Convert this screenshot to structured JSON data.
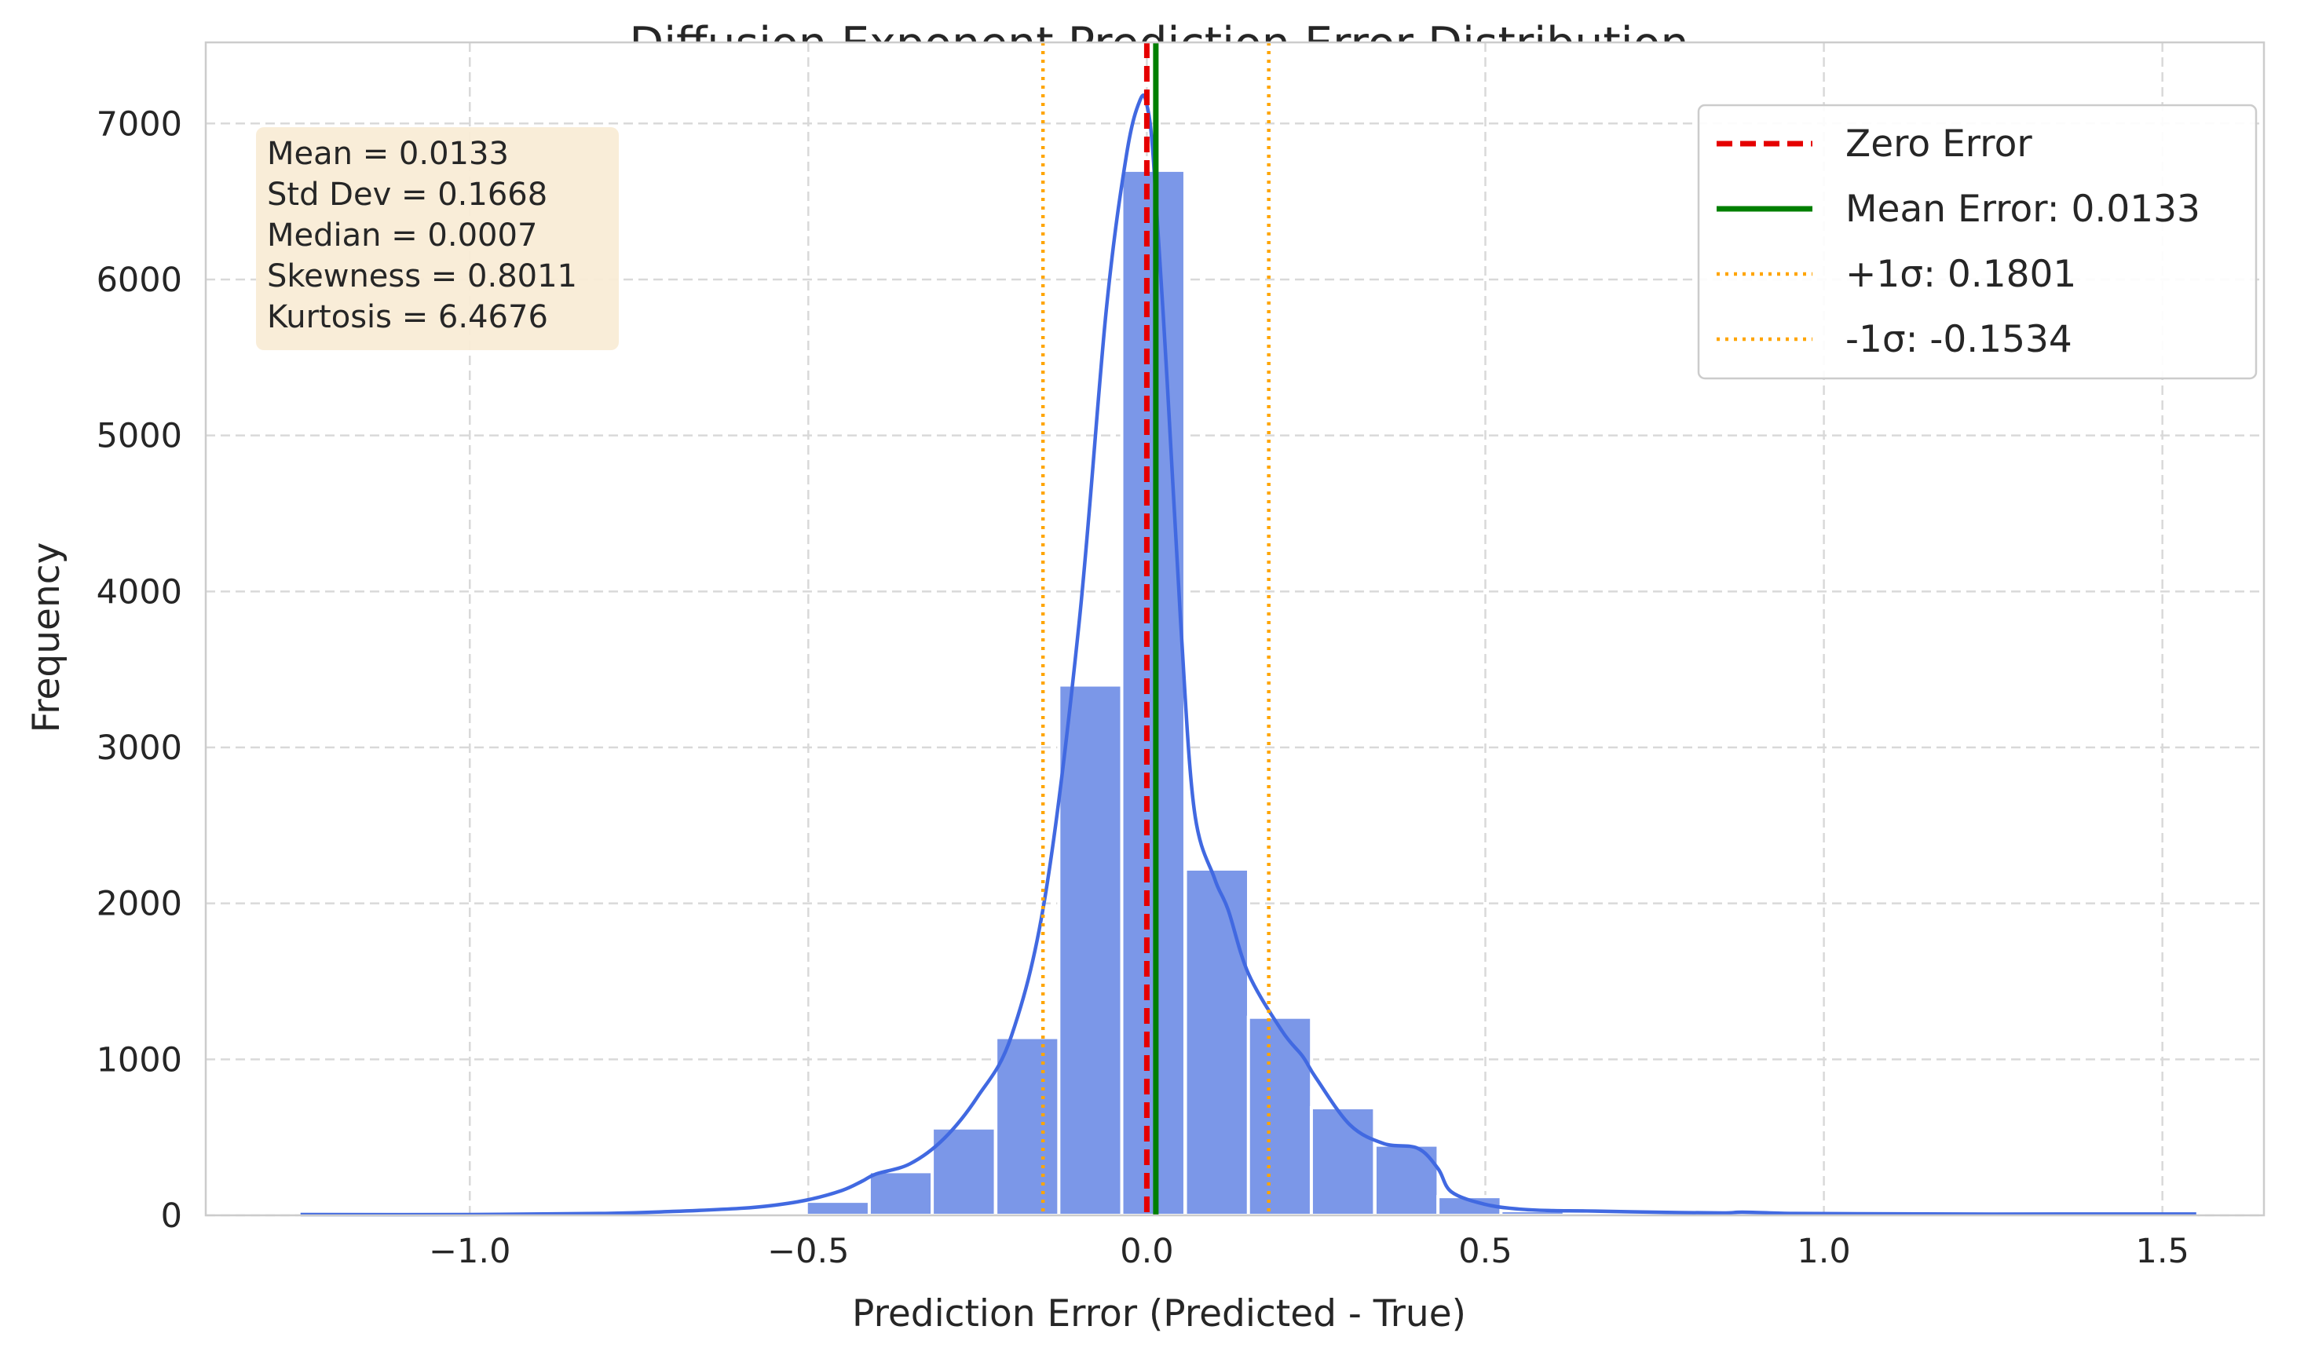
{
  "chart_data": {
    "type": "bar",
    "title": "Diffusion Exponent Prediction Error Distribution",
    "xlabel": "Prediction Error (Predicted - True)",
    "ylabel": "Frequency",
    "xlim": [
      -1.39,
      1.65
    ],
    "ylim": [
      0,
      7520
    ],
    "grid": true,
    "x_ticks": [
      -1.0,
      -0.5,
      0.0,
      0.5,
      1.0,
      1.5
    ],
    "x_tick_labels": [
      "−1.0",
      "−0.5",
      "0.0",
      "0.5",
      "1.0",
      "1.5"
    ],
    "y_ticks": [
      0,
      1000,
      2000,
      3000,
      4000,
      5000,
      6000,
      7000
    ],
    "y_tick_labels": [
      "0",
      "1000",
      "2000",
      "3000",
      "4000",
      "5000",
      "6000",
      "7000"
    ],
    "bin_width": 0.0933,
    "histogram": {
      "bin_starts": [
        -1.25,
        -1.157,
        -1.063,
        -0.97,
        -0.877,
        -0.783,
        -0.69,
        -0.597,
        -0.503,
        -0.41,
        -0.317,
        -0.223,
        -0.13,
        -0.037,
        0.057,
        0.15,
        0.243,
        0.337,
        0.43,
        0.523,
        0.617,
        0.71,
        0.803,
        0.897,
        0.99,
        1.083,
        1.177,
        1.27,
        1.363,
        1.457
      ],
      "values": [
        2,
        1,
        2,
        3,
        3,
        5,
        8,
        18,
        90,
        280,
        560,
        1140,
        3400,
        6700,
        2220,
        1270,
        690,
        450,
        120,
        30,
        12,
        8,
        6,
        6,
        4,
        3,
        2,
        2,
        2,
        2
      ]
    },
    "kde": {
      "x": [
        -1.25,
        -1.0,
        -0.8,
        -0.7,
        -0.6,
        -0.55,
        -0.5,
        -0.45,
        -0.42,
        -0.4,
        -0.35,
        -0.3,
        -0.25,
        -0.2,
        -0.15,
        -0.1,
        -0.06,
        -0.03,
        -0.01,
        0.0,
        0.01,
        0.03,
        0.05,
        0.07,
        0.1,
        0.12,
        0.15,
        0.2,
        0.23,
        0.25,
        0.3,
        0.35,
        0.4,
        0.43,
        0.45,
        0.5,
        0.55,
        0.6,
        0.65,
        0.75,
        0.85,
        0.88,
        0.95,
        1.05,
        1.2,
        1.35,
        1.55
      ],
      "y": [
        5,
        5,
        12,
        25,
        45,
        65,
        100,
        160,
        220,
        265,
        330,
        490,
        760,
        1150,
        2050,
        3800,
        5800,
        6800,
        7150,
        7120,
        6750,
        5350,
        3800,
        2600,
        2160,
        1960,
        1550,
        1180,
        1020,
        880,
        580,
        460,
        430,
        300,
        150,
        70,
        40,
        30,
        28,
        20,
        15,
        20,
        12,
        10,
        8,
        8,
        8
      ]
    },
    "vlines": [
      {
        "name": "Zero Error",
        "x": 0.0,
        "color": "#e50000",
        "style": "dashed"
      },
      {
        "name": "Mean Error: 0.0133",
        "x": 0.0133,
        "color": "#007f00",
        "style": "solid"
      },
      {
        "name": "+1σ: 0.1801",
        "x": 0.1801,
        "color": "#ffa500",
        "style": "dotted"
      },
      {
        "name": "-1σ: -0.1534",
        "x": -0.1534,
        "color": "#ffa500",
        "style": "dotted"
      }
    ],
    "legend_position": "top-right",
    "stats_box": [
      "Mean = 0.0133",
      "Std Dev = 0.1668",
      "Median = 0.0007",
      "Skewness = 0.8011",
      "Kurtosis = 6.4676"
    ],
    "colors": {
      "bar": "#7b97e8",
      "kde": "#4169e1",
      "grid": "#d9d9d9",
      "spine": "#cccccc",
      "stats_box_bg": "#f9ecd6"
    }
  }
}
